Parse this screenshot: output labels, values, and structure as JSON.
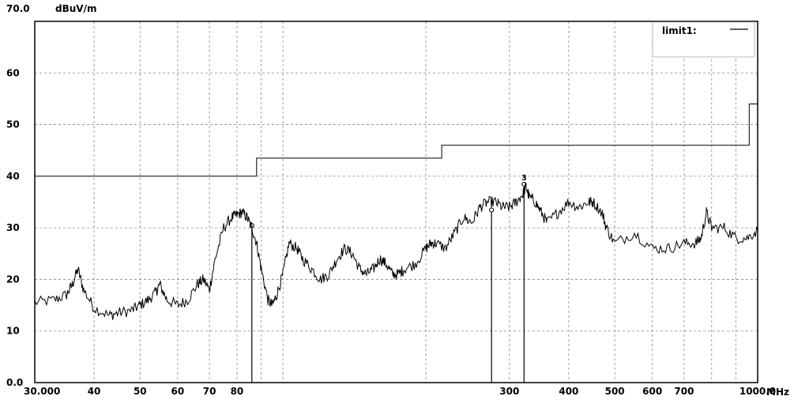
{
  "chart_data": {
    "type": "line",
    "title": "",
    "ylabel": "dBuV/m",
    "xlabel": "MHz",
    "x_scale": "log",
    "xlim": [
      30,
      1000
    ],
    "ylim": [
      0,
      70
    ],
    "grid": true,
    "legend_position": "top-right",
    "y_ticks": [
      0,
      10,
      20,
      30,
      40,
      50,
      60,
      70
    ],
    "y_tick_labels": [
      "0.0",
      "10",
      "20",
      "30",
      "40",
      "50",
      "60",
      "70.0"
    ],
    "x_ticks": [
      30,
      40,
      50,
      60,
      70,
      80,
      300,
      400,
      500,
      600,
      700,
      1000
    ],
    "x_tick_labels": [
      "30.000",
      "40",
      "50",
      "60",
      "70",
      "80",
      "300",
      "400",
      "500",
      "600",
      "700",
      "1000.0"
    ],
    "x_grid": [
      30,
      40,
      50,
      60,
      70,
      80,
      90,
      100,
      200,
      300,
      400,
      500,
      600,
      700,
      800,
      900,
      1000
    ],
    "legend": {
      "label": "limit1:"
    },
    "limit": {
      "name": "limit1",
      "points": [
        [
          30,
          40
        ],
        [
          88,
          40
        ],
        [
          88,
          43.5
        ],
        [
          216,
          43.5
        ],
        [
          216,
          46
        ],
        [
          960,
          46
        ],
        [
          960,
          54
        ],
        [
          1000,
          54
        ]
      ]
    },
    "series": [
      {
        "name": "",
        "x": [
          30,
          33,
          35,
          36,
          37,
          38,
          40,
          43,
          45,
          48,
          50,
          52,
          54,
          55,
          57,
          60,
          63,
          66,
          68,
          70,
          72,
          75,
          78,
          80,
          82,
          84,
          86,
          88,
          90,
          93,
          95,
          97,
          100,
          103,
          107,
          110,
          115,
          120,
          125,
          130,
          135,
          140,
          145,
          150,
          155,
          160,
          165,
          170,
          175,
          180,
          190,
          200,
          205,
          210,
          220,
          230,
          240,
          250,
          260,
          270,
          280,
          290,
          300,
          310,
          320,
          325,
          330,
          340,
          350,
          360,
          380,
          400,
          420,
          440,
          450,
          470,
          480,
          500,
          550,
          600,
          650,
          700,
          740,
          760,
          780,
          800,
          850,
          900,
          950,
          1000
        ],
        "y": [
          15.5,
          16,
          17,
          19,
          22,
          18,
          14.5,
          13,
          13.5,
          14,
          15,
          16,
          17.5,
          19,
          16,
          15,
          16,
          19,
          20,
          18,
          24,
          30,
          32,
          32.5,
          33,
          32,
          30,
          27,
          22,
          16,
          15,
          17,
          21,
          27,
          26,
          24,
          22,
          20,
          21,
          24,
          26,
          25,
          22,
          21,
          22,
          24,
          23,
          21,
          21,
          22,
          23,
          26,
          27,
          27,
          26,
          29,
          32,
          31,
          34,
          35,
          35,
          34,
          34,
          35,
          36.5,
          38,
          36,
          35,
          33,
          31,
          33,
          35,
          34,
          35,
          35,
          33,
          30,
          27,
          29,
          26,
          26,
          27,
          27,
          28,
          33,
          30,
          30,
          28,
          28,
          29.5
        ]
      }
    ],
    "markers": [
      {
        "label": "",
        "x": 86,
        "y": 30
      },
      {
        "label": "",
        "x": 275,
        "y": 33
      },
      {
        "label": "3",
        "x": 322,
        "y": 38
      }
    ]
  }
}
